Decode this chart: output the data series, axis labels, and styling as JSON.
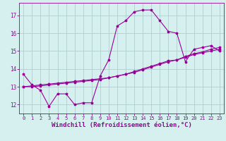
{
  "background_color": "#d6f0f0",
  "grid_color": "#b0cece",
  "line_color": "#990099",
  "marker_color": "#990099",
  "xlabel": "Windchill (Refroidissement éolien,°C)",
  "xlabel_fontsize": 6.5,
  "tick_fontsize": 5.5,
  "xlim": [
    -0.5,
    23.5
  ],
  "ylim": [
    11.5,
    17.7
  ],
  "yticks": [
    12,
    13,
    14,
    15,
    16,
    17
  ],
  "xticks": [
    0,
    1,
    2,
    3,
    4,
    5,
    6,
    7,
    8,
    9,
    10,
    11,
    12,
    13,
    14,
    15,
    16,
    17,
    18,
    19,
    20,
    21,
    22,
    23
  ],
  "series1_x": [
    0,
    1,
    2,
    3,
    4,
    5,
    6,
    7,
    8,
    9,
    10,
    11,
    12,
    13,
    14,
    15,
    16,
    17,
    18,
    19,
    20,
    21,
    22,
    23
  ],
  "series1_y": [
    13.7,
    13.1,
    12.8,
    11.9,
    12.6,
    12.6,
    12.0,
    12.1,
    12.1,
    13.6,
    14.5,
    16.4,
    16.7,
    17.2,
    17.3,
    17.3,
    16.7,
    16.1,
    16.0,
    14.4,
    15.1,
    15.2,
    15.3,
    15.0
  ],
  "series2_x": [
    0,
    1,
    2,
    3,
    4,
    5,
    6,
    7,
    8,
    9,
    10,
    11,
    12,
    13,
    14,
    15,
    16,
    17,
    18,
    19,
    20,
    21,
    22,
    23
  ],
  "series2_y": [
    13.0,
    13.05,
    13.1,
    13.15,
    13.2,
    13.25,
    13.3,
    13.35,
    13.4,
    13.45,
    13.5,
    13.6,
    13.7,
    13.85,
    14.0,
    14.15,
    14.3,
    14.45,
    14.5,
    14.7,
    14.85,
    14.95,
    15.1,
    15.2
  ],
  "series3_x": [
    0,
    1,
    2,
    3,
    4,
    5,
    6,
    7,
    8,
    9,
    10,
    11,
    12,
    13,
    14,
    15,
    16,
    17,
    18,
    19,
    20,
    21,
    22,
    23
  ],
  "series3_y": [
    13.0,
    13.0,
    13.05,
    13.1,
    13.15,
    13.2,
    13.25,
    13.3,
    13.35,
    13.4,
    13.5,
    13.6,
    13.7,
    13.8,
    13.95,
    14.1,
    14.25,
    14.4,
    14.5,
    14.65,
    14.8,
    14.9,
    15.0,
    15.1
  ]
}
